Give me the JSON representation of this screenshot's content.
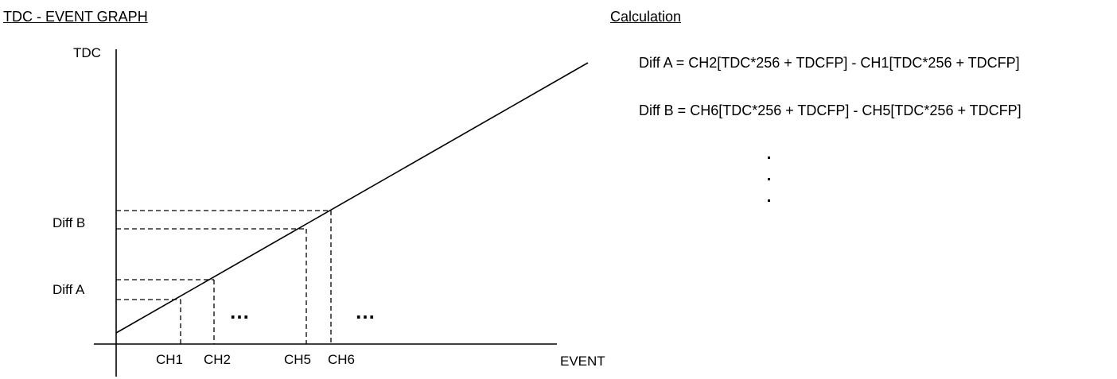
{
  "graph": {
    "title": "TDC -  EVENT GRAPH",
    "y_axis_label": "TDC",
    "x_axis_label": "EVENT",
    "y_ticks": [
      "Diff B",
      "Diff A"
    ],
    "x_ticks": [
      "CH1",
      "CH2",
      "CH5",
      "CH6"
    ],
    "ellipses": [
      "…",
      "…"
    ]
  },
  "calculation": {
    "title": "Calculation",
    "formulas": [
      "Diff A = CH2[TDC*256 + TDCFP] - CH1[TDC*256 + TDCFP]",
      "Diff B = CH6[TDC*256 + TDCFP] - CH5[TDC*256 + TDCFP]"
    ]
  }
}
